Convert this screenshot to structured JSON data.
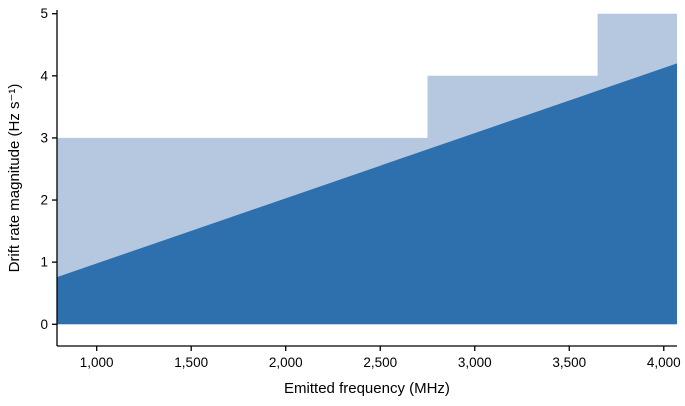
{
  "figure": {
    "background": "#ffffff"
  },
  "chart_data": {
    "type": "area",
    "title": "",
    "xlabel": "Emitted frequency (MHz)",
    "ylabel": "Drift rate magnitude (Hz s⁻¹)",
    "xlim": [
      790,
      4070
    ],
    "ylim": [
      -0.35,
      5.06
    ],
    "grid": false,
    "legend": "none",
    "axis_color": "#000000",
    "x_ticks": [
      {
        "value": 1000,
        "label": "1,000"
      },
      {
        "value": 1500,
        "label": "1,500"
      },
      {
        "value": 2000,
        "label": "2,000"
      },
      {
        "value": 2500,
        "label": "2,500"
      },
      {
        "value": 3000,
        "label": "3,000"
      },
      {
        "value": 3500,
        "label": "3,500"
      },
      {
        "value": 4000,
        "label": "4,000"
      }
    ],
    "y_ticks": [
      {
        "value": 0,
        "label": "0"
      },
      {
        "value": 1,
        "label": "1"
      },
      {
        "value": 2,
        "label": "2"
      },
      {
        "value": 3,
        "label": "3"
      },
      {
        "value": 4,
        "label": "4"
      },
      {
        "value": 5,
        "label": "5"
      }
    ],
    "series": [
      {
        "name": "stepped-max-drift-region",
        "type": "filled-step",
        "color": "#b6c8df",
        "fill_to_y": 0,
        "points": [
          [
            790,
            3
          ],
          [
            2750,
            3
          ],
          [
            2750,
            4
          ],
          [
            3650,
            4
          ],
          [
            3650,
            5
          ],
          [
            4070,
            5
          ]
        ]
      },
      {
        "name": "linear-drift-region",
        "type": "filled-line",
        "color": "#2d70ad",
        "fill_to_y": 0,
        "points": [
          [
            790,
            0.76
          ],
          [
            4070,
            4.2
          ]
        ]
      }
    ]
  }
}
